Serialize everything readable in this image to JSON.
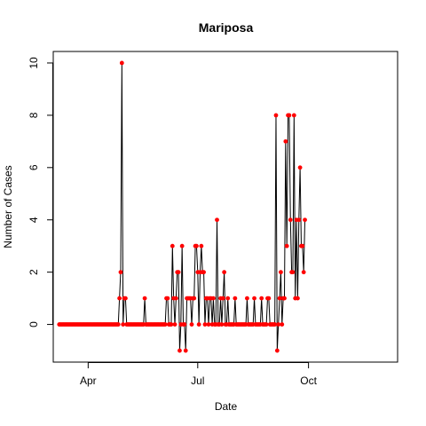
{
  "chart_data": {
    "type": "line",
    "title": "Mariposa",
    "xlabel": "Date",
    "ylabel": "Number of Cases",
    "x_start": "2020-03-08",
    "x_ticks": [
      {
        "label": "Apr",
        "date": "2020-04-01"
      },
      {
        "label": "Jul",
        "date": "2020-07-01"
      },
      {
        "label": "Oct",
        "date": "2020-10-01"
      }
    ],
    "y_ticks": [
      0,
      2,
      4,
      6,
      8,
      10
    ],
    "xlim": [
      "2020-03-03",
      "2020-12-14"
    ],
    "ylim": [
      -1.44,
      10.44
    ],
    "line_color": "#000000",
    "point_color": "#ff0000",
    "series": [
      {
        "values": [
          0,
          0,
          0,
          0,
          0,
          0,
          0,
          0,
          0,
          0,
          0,
          0,
          0,
          0,
          0,
          0,
          0,
          0,
          0,
          0,
          0,
          0,
          0,
          0,
          0,
          0,
          0,
          0,
          0,
          0,
          0,
          0,
          0,
          0,
          0,
          0,
          0,
          0,
          0,
          0,
          0,
          0,
          0,
          0,
          0,
          0,
          0,
          0,
          0,
          0,
          1,
          2,
          10,
          0,
          1,
          1,
          0,
          0,
          0,
          0,
          0,
          0,
          0,
          0,
          0,
          0,
          0,
          0,
          0,
          0,
          0,
          1,
          0,
          0,
          0,
          0,
          0,
          0,
          0,
          0,
          0,
          0,
          0,
          0,
          0,
          0,
          0,
          0,
          0,
          1,
          1,
          0,
          0,
          0,
          3,
          1,
          0,
          1,
          2,
          2,
          -1,
          0,
          3,
          0,
          0,
          -1,
          1,
          1,
          1,
          1,
          0,
          1,
          1,
          3,
          3,
          2,
          0,
          2,
          3,
          2,
          2,
          0,
          1,
          1,
          0,
          1,
          1,
          0,
          1,
          0,
          0,
          4,
          0,
          0,
          1,
          0,
          1,
          2,
          0,
          0,
          1,
          0,
          0,
          0,
          0,
          0,
          1,
          0,
          0,
          0,
          0,
          0,
          0,
          0,
          0,
          0,
          1,
          0,
          0,
          0,
          0,
          0,
          1,
          0,
          0,
          0,
          0,
          0,
          1,
          0,
          0,
          0,
          0,
          1,
          1,
          0,
          0,
          0,
          0,
          0,
          8,
          -1,
          0,
          1,
          2,
          0,
          1,
          1,
          7,
          3,
          8,
          8,
          4,
          2,
          2,
          8,
          1,
          4,
          1,
          4,
          6,
          3,
          3,
          2,
          4
        ]
      }
    ]
  }
}
